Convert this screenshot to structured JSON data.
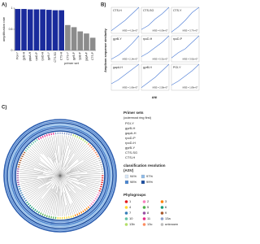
{
  "chart_data": [
    {
      "type": "bar",
      "panel_label": "A)",
      "ylabel": "amplification rate",
      "xlabel": "primer set",
      "categories": [
        "PGI-Y",
        "gyrB-H",
        "gapA-H",
        "rpoD-P",
        "rpoD-H",
        "gyrB-Y",
        "CTS-SG",
        "CTS-H",
        "CTS-Y",
        "gyrB-P",
        "rpoB-P",
        "gapA-P",
        "CTS-P"
      ],
      "values": [
        0.98,
        0.98,
        0.97,
        0.97,
        0.97,
        0.96,
        0.95,
        0.95,
        0.6,
        0.55,
        0.45,
        0.4,
        0.3
      ],
      "colors": [
        "#1a2b9c",
        "#1a2b9c",
        "#1a2b9c",
        "#1a2b9c",
        "#1a2b9c",
        "#1a2b9c",
        "#1a2b9c",
        "#1a2b9c",
        "#8c8c8c",
        "#8c8c8c",
        "#8c8c8c",
        "#8c8c8c",
        "#8c8c8c"
      ],
      "ylim": [
        0,
        1
      ],
      "yticks": [
        0,
        0.5,
        1
      ]
    },
    {
      "type": "line_grid",
      "panel_label": "B)",
      "ylabel": "Amplicon sequence similarity",
      "xlabel": "ANI",
      "xlim": [
        0.8,
        1
      ],
      "ylim": [
        0.8,
        1
      ],
      "color": "#4a7bd6",
      "panels": [
        {
          "title": "CTS-H",
          "x": [
            0.8,
            0.85,
            0.9,
            0.95,
            1
          ],
          "values": [
            0.82,
            0.86,
            0.9,
            0.95,
            1
          ],
          "annotation": "MSE = 4.13e-07"
        },
        {
          "title": "CTS-SG",
          "x": [
            0.8,
            0.85,
            0.9,
            0.95,
            1
          ],
          "values": [
            0.83,
            0.86,
            0.91,
            0.95,
            1
          ],
          "annotation": "MSE = 6.09e-07"
        },
        {
          "title": "CTS-Y",
          "x": [
            0.8,
            0.85,
            0.9,
            0.95,
            1
          ],
          "values": [
            0.81,
            0.85,
            0.9,
            0.96,
            1
          ],
          "annotation": "MSE = 3.77e-07"
        },
        {
          "title": "gyrB-Y",
          "x": [
            0.8,
            0.85,
            0.9,
            0.95,
            1
          ],
          "values": [
            0.82,
            0.85,
            0.89,
            0.94,
            1
          ],
          "annotation": "MSE = 2.14e-07"
        },
        {
          "title": "rpoD-H",
          "x": [
            0.8,
            0.85,
            0.9,
            0.95,
            1
          ],
          "values": [
            0.84,
            0.87,
            0.91,
            0.95,
            1
          ],
          "annotation": "MSE = 5.31e-07"
        },
        {
          "title": "rpoD-P",
          "x": [
            0.8,
            0.85,
            0.9,
            0.95,
            1
          ],
          "values": [
            0.83,
            0.87,
            0.9,
            0.95,
            1
          ],
          "annotation": "MSE = 3.92e-07"
        },
        {
          "title": "gapA-H",
          "x": [
            0.8,
            0.85,
            0.9,
            0.95,
            1
          ],
          "values": [
            0.85,
            0.88,
            0.92,
            0.96,
            1
          ],
          "annotation": "MSE = 1.66e-07"
        },
        {
          "title": "gyrB-H",
          "x": [
            0.8,
            0.85,
            0.9,
            0.95,
            1
          ],
          "values": [
            0.82,
            0.86,
            0.9,
            0.95,
            1
          ],
          "annotation": "MSE = 2.58e-07"
        },
        {
          "title": "PGI-Y",
          "x": [
            0.8,
            0.85,
            0.9,
            0.95,
            1
          ],
          "values": [
            0.84,
            0.87,
            0.91,
            0.95,
            1
          ],
          "annotation": "MSE = 1.89e-07"
        }
      ]
    }
  ],
  "tree_figure": {
    "panel_label": "C)",
    "primer_title": "Primer sets",
    "primer_subtitle": "(outermost ring first)",
    "primer_sets": [
      "PGI-Y",
      "gyrB-H",
      "gapA-H",
      "rpoD-P",
      "rpoD-H",
      "gyrB-Y",
      "CTS-SG",
      "CTS-H"
    ],
    "resolution_title": "classification resolution",
    "resolution_subtitle": "(ASV)",
    "resolution_levels": [
      {
        "label": "94%",
        "color": "#d6e6f7"
      },
      {
        "label": "97%",
        "color": "#8fbbe8"
      },
      {
        "label": "98%",
        "color": "#4a86d0"
      },
      {
        "label": "99%",
        "color": "#1c4fa0"
      }
    ],
    "phylogroups_title": "Phylogroups",
    "phylogroups": [
      {
        "label": "1",
        "color": "#e41a1c"
      },
      {
        "label": "2",
        "color": "#f781bf"
      },
      {
        "label": "3",
        "color": "#ff7f00"
      },
      {
        "label": "4",
        "color": "#ffd92f"
      },
      {
        "label": "5",
        "color": "#4daf4a"
      },
      {
        "label": "6",
        "color": "#1b9e77"
      },
      {
        "label": "7",
        "color": "#377eb8"
      },
      {
        "label": "8",
        "color": "#984ea3"
      },
      {
        "label": "9",
        "color": "#a65628"
      },
      {
        "label": "10",
        "color": "#66c2a5"
      },
      {
        "label": "11",
        "color": "#e7298a"
      },
      {
        "label": "13a",
        "color": "#8da0cb"
      },
      {
        "label": "13b",
        "color": "#b3de69"
      },
      {
        "label": "13c",
        "color": "#fc8d62"
      },
      {
        "label": "unknown",
        "color": "#bbbbbb"
      }
    ]
  }
}
